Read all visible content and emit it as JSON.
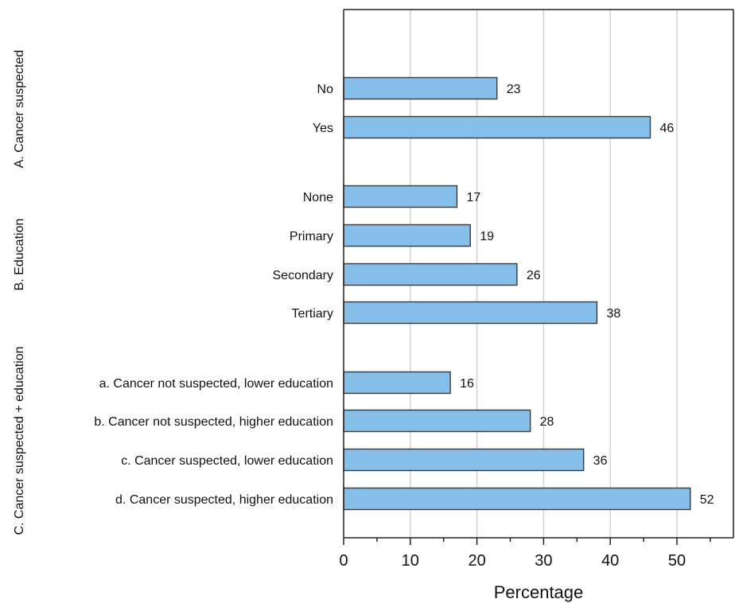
{
  "chart_data": {
    "type": "bar",
    "orientation": "horizontal",
    "xlabel": "Percentage",
    "xlim": [
      0,
      58
    ],
    "xticks": [
      0,
      10,
      20,
      30,
      40,
      50
    ],
    "grid": "vertical",
    "bar_color": "#85bfea",
    "groups": [
      {
        "label": "A. Cancer suspected",
        "categories": [
          "No",
          "Yes"
        ],
        "values": [
          23,
          46
        ]
      },
      {
        "label": "B. Education",
        "categories": [
          "None",
          "Primary",
          "Secondary",
          "Tertiary"
        ],
        "values": [
          17,
          19,
          26,
          38
        ]
      },
      {
        "label": "C. Cancer suspected + education",
        "categories": [
          "a. Cancer not suspected, lower education",
          "b. Cancer not suspected, higher education",
          "c. Cancer suspected, lower education",
          "d. Cancer suspected, higher education"
        ],
        "values": [
          16,
          28,
          36,
          52
        ]
      }
    ]
  }
}
